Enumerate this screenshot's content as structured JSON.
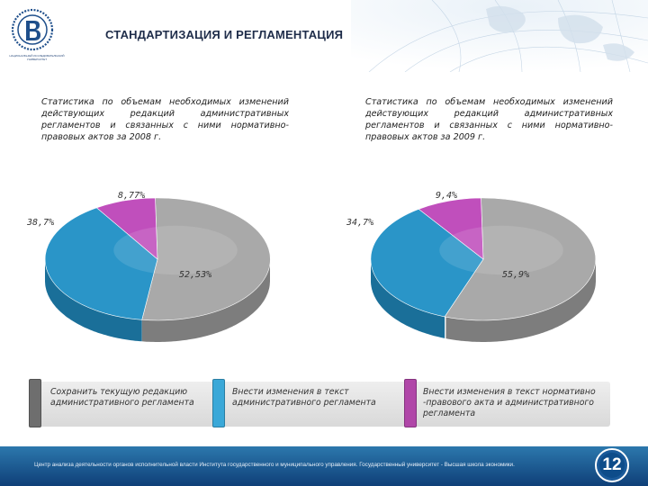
{
  "header": {
    "title": "СТАНДАРТИЗАЦИЯ И РЕГЛАМЕНТАЦИЯ",
    "logo_caption": "НАЦИОНАЛЬНЫЙ ИССЛЕДОВАТЕЛЬСКИЙ УНИВЕРСИТЕТ"
  },
  "charts": [
    {
      "caption": "Статистика по объемам необходимых изменений действующих редакций административных регламентов и связанных с ними нормативно-правовых актов за 2008 г.",
      "labels": [
        "52,53%",
        "38,7%",
        "8,77%"
      ]
    },
    {
      "caption": "Статистика по объемам необходимых изменений действующих редакций административных регламентов и связанных с ними нормативно-правовых актов за 2009 г.",
      "labels": [
        "55,9%",
        "34,7%",
        "9,4%"
      ]
    }
  ],
  "chart_data": [
    {
      "type": "pie",
      "title": "Статистика по объемам необходимых изменений действующих редакций административных регламентов и связанных с ними нормативно-правовых актов за 2008 г.",
      "labels": [
        "Сохранить текущую редакцию административного регламента",
        "Внести изменения в текст административного регламента",
        "Внести изменения в текст нормативно-правового акта и административного регламента"
      ],
      "values": [
        52.53,
        38.7,
        8.77
      ]
    },
    {
      "type": "pie",
      "title": "Статистика по объемам необходимых изменений действующих редакций административных регламентов и связанных с ними нормативно-правовых актов за 2009 г.",
      "labels": [
        "Сохранить текущую редакцию административного регламента",
        "Внести изменения в текст административного регламента",
        "Внести изменения в текст нормативно-правового акта и административного регламента"
      ],
      "values": [
        55.9,
        34.7,
        9.4
      ]
    }
  ],
  "colors": {
    "gray": "#a9a9a9",
    "blue": "#2a95c8",
    "magenta": "#c04fbc",
    "dark_gray": "#6e6e6e"
  },
  "legend": [
    {
      "text": "Сохранить текущую редакцию административного регламента",
      "color": "#6e6e6e"
    },
    {
      "text": "Внести изменения в текст административного регламента",
      "color": "#3aa8d8"
    },
    {
      "text": "Внести изменения в текст нормативно -правового акта и административного регламента",
      "color": "#b046a8"
    }
  ],
  "footer": {
    "text": "Центр анализа деятельности органов исполнительной власти Института государственного и муниципального управления. Государственный университет - Высшая школа экономики.",
    "page_number": "12"
  }
}
